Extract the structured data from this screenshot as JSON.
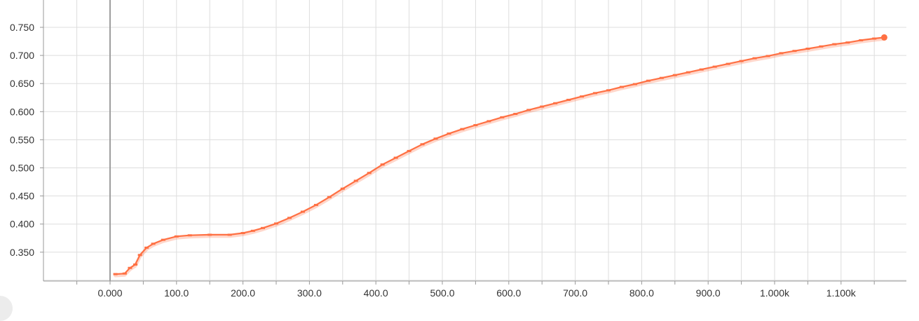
{
  "chart_data": {
    "type": "line",
    "title": "",
    "xlabel": "",
    "ylabel": "",
    "xlim": [
      -100,
      1200
    ],
    "ylim": [
      0.3,
      0.8
    ],
    "grid": true,
    "x_ticks": [
      0,
      100,
      200,
      300,
      400,
      500,
      600,
      700,
      800,
      900,
      1000,
      1100
    ],
    "x_tick_labels": [
      "0.000",
      "100.0",
      "200.0",
      "300.0",
      "400.0",
      "500.0",
      "600.0",
      "700.0",
      "800.0",
      "900.0",
      "1.000k",
      "1.100k"
    ],
    "y_ticks": [
      0.35,
      0.4,
      0.45,
      0.5,
      0.55,
      0.6,
      0.65,
      0.7,
      0.75
    ],
    "y_tick_labels": [
      "0.350",
      "0.400",
      "0.450",
      "0.500",
      "0.550",
      "0.600",
      "0.650",
      "0.700",
      "0.750"
    ],
    "series": [
      {
        "color": "#ff7043",
        "points": [
          [
            8,
            0.311
          ],
          [
            22,
            0.312
          ],
          [
            30,
            0.322
          ],
          [
            38,
            0.328
          ],
          [
            45,
            0.345
          ],
          [
            55,
            0.358
          ],
          [
            65,
            0.365
          ],
          [
            80,
            0.372
          ],
          [
            100,
            0.378
          ],
          [
            120,
            0.38
          ],
          [
            150,
            0.381
          ],
          [
            180,
            0.381
          ],
          [
            200,
            0.384
          ],
          [
            215,
            0.388
          ],
          [
            230,
            0.393
          ],
          [
            250,
            0.401
          ],
          [
            270,
            0.411
          ],
          [
            290,
            0.422
          ],
          [
            310,
            0.434
          ],
          [
            330,
            0.448
          ],
          [
            350,
            0.463
          ],
          [
            370,
            0.477
          ],
          [
            390,
            0.491
          ],
          [
            410,
            0.506
          ],
          [
            430,
            0.518
          ],
          [
            450,
            0.53
          ],
          [
            470,
            0.542
          ],
          [
            490,
            0.552
          ],
          [
            510,
            0.561
          ],
          [
            530,
            0.569
          ],
          [
            550,
            0.576
          ],
          [
            570,
            0.583
          ],
          [
            590,
            0.59
          ],
          [
            610,
            0.596
          ],
          [
            630,
            0.603
          ],
          [
            650,
            0.609
          ],
          [
            670,
            0.615
          ],
          [
            690,
            0.621
          ],
          [
            710,
            0.627
          ],
          [
            730,
            0.633
          ],
          [
            750,
            0.638
          ],
          [
            770,
            0.644
          ],
          [
            790,
            0.649
          ],
          [
            810,
            0.655
          ],
          [
            830,
            0.66
          ],
          [
            850,
            0.665
          ],
          [
            870,
            0.67
          ],
          [
            890,
            0.675
          ],
          [
            910,
            0.68
          ],
          [
            930,
            0.685
          ],
          [
            950,
            0.69
          ],
          [
            970,
            0.695
          ],
          [
            990,
            0.699
          ],
          [
            1010,
            0.704
          ],
          [
            1030,
            0.708
          ],
          [
            1050,
            0.712
          ],
          [
            1070,
            0.716
          ],
          [
            1090,
            0.72
          ],
          [
            1110,
            0.723
          ],
          [
            1130,
            0.727
          ],
          [
            1150,
            0.73
          ],
          [
            1165,
            0.732
          ]
        ]
      }
    ]
  }
}
